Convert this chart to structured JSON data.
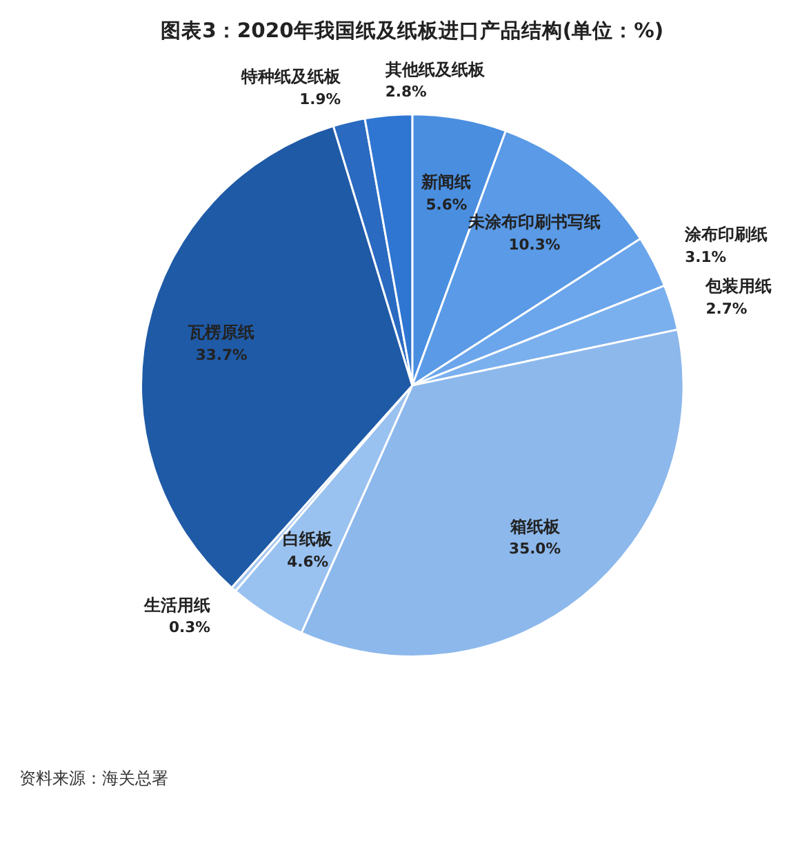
{
  "chart_data": {
    "type": "pie",
    "title": "图表3：2020年我国纸及纸板进口产品结构(单位：%)",
    "categories": [
      "新闻纸",
      "未涂布印刷书写纸",
      "涂布印刷纸",
      "包装用纸",
      "箱纸板",
      "白纸板",
      "生活用纸",
      "瓦楞原纸",
      "特种纸及纸板",
      "其他纸及纸板"
    ],
    "values": [
      5.6,
      10.3,
      3.1,
      2.7,
      35.0,
      4.6,
      0.3,
      33.7,
      1.9,
      2.8
    ],
    "value_labels": [
      "5.6%",
      "10.3%",
      "3.1%",
      "2.7%",
      "35.0%",
      "4.6%",
      "0.3%",
      "33.7%",
      "1.9%",
      "2.8%"
    ],
    "colors": [
      "#4a8ee0",
      "#5a9ae6",
      "#6ba6ec",
      "#7bb0ee",
      "#8db8ec",
      "#9ac2f0",
      "#a8c8f0",
      "#1f5aa6",
      "#2a6ac0",
      "#2f76d2"
    ],
    "annotations": [
      "资料来源：海关总署"
    ]
  }
}
